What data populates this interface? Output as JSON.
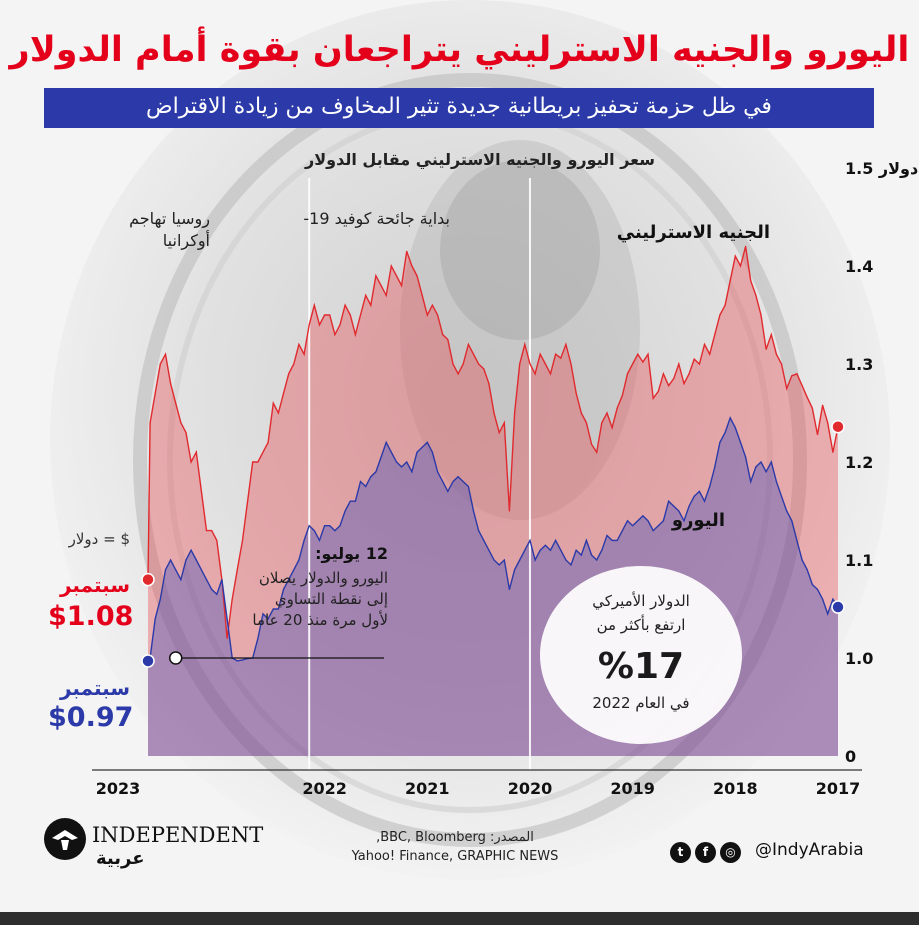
{
  "headline": "اليورو والجنيه الاسترليني يتراجعان بقوة أمام الدولار",
  "subtitle": "في ظل حزمة تحفيز بريطانية جديدة تثير المخاوف من زيادة الاقتراض",
  "chart_data": {
    "type": "area",
    "title": "سعر اليورو والجنيه الاسترليني مقابل الدولار",
    "y_tick_labels": [
      "0",
      "1.0",
      "1.1",
      "1.2",
      "1.3",
      "1.4",
      "1.5 دولار"
    ],
    "x_tick_labels": [
      "2017",
      "2018",
      "2019",
      "2020",
      "2021",
      "2022",
      "2023"
    ],
    "ylim": [
      0,
      1.5
    ],
    "x_axis_direction": "right-to-left",
    "series": [
      {
        "name": "الجنيه الاسترليني",
        "color": "#e02a2e",
        "x": [
          2017.0,
          2017.05,
          2017.1,
          2017.15,
          2017.2,
          2017.25,
          2017.3,
          2017.35,
          2017.4,
          2017.45,
          2017.5,
          2017.55,
          2017.6,
          2017.65,
          2017.7,
          2017.75,
          2017.8,
          2017.85,
          2017.9,
          2017.95,
          2018.0,
          2018.05,
          2018.1,
          2018.15,
          2018.2,
          2018.25,
          2018.3,
          2018.35,
          2018.4,
          2018.45,
          2018.5,
          2018.55,
          2018.6,
          2018.65,
          2018.7,
          2018.75,
          2018.8,
          2018.85,
          2018.9,
          2018.95,
          2019.0,
          2019.05,
          2019.1,
          2019.15,
          2019.2,
          2019.25,
          2019.3,
          2019.35,
          2019.4,
          2019.45,
          2019.5,
          2019.55,
          2019.6,
          2019.65,
          2019.7,
          2019.75,
          2019.8,
          2019.85,
          2019.9,
          2019.95,
          2020.0,
          2020.05,
          2020.1,
          2020.15,
          2020.2,
          2020.25,
          2020.3,
          2020.35,
          2020.4,
          2020.45,
          2020.5,
          2020.55,
          2020.6,
          2020.65,
          2020.7,
          2020.75,
          2020.8,
          2020.85,
          2020.9,
          2020.95,
          2021.0,
          2021.05,
          2021.1,
          2021.15,
          2021.2,
          2021.25,
          2021.3,
          2021.35,
          2021.4,
          2021.45,
          2021.5,
          2021.55,
          2021.6,
          2021.65,
          2021.7,
          2021.75,
          2021.8,
          2021.85,
          2021.9,
          2021.95,
          2022.0,
          2022.05,
          2022.1,
          2022.15,
          2022.2,
          2022.25,
          2022.3,
          2022.35,
          2022.4,
          2022.45,
          2022.5,
          2022.55,
          2022.6,
          2022.65,
          2022.7,
          2022.75,
          2022.8,
          2022.85,
          2022.9,
          2022.95,
          2023.0,
          2023.05,
          2023.1,
          2023.15,
          2023.2,
          2023.25,
          2023.3,
          2023.35,
          2023.4,
          2023.45,
          2023.5,
          2023.55,
          2023.6,
          2023.65,
          2023.7,
          2023.72
        ],
        "values": [
          1.236,
          1.21,
          1.24,
          1.258,
          1.228,
          1.255,
          1.266,
          1.278,
          1.29,
          1.288,
          1.275,
          1.3,
          1.31,
          1.33,
          1.315,
          1.35,
          1.37,
          1.385,
          1.42,
          1.4,
          1.41,
          1.385,
          1.36,
          1.35,
          1.33,
          1.31,
          1.32,
          1.3,
          1.305,
          1.29,
          1.28,
          1.3,
          1.285,
          1.278,
          1.29,
          1.272,
          1.265,
          1.31,
          1.302,
          1.31,
          1.3,
          1.29,
          1.268,
          1.255,
          1.235,
          1.25,
          1.24,
          1.21,
          1.218,
          1.24,
          1.25,
          1.27,
          1.3,
          1.32,
          1.306,
          1.31,
          1.29,
          1.3,
          1.31,
          1.29,
          1.3,
          1.32,
          1.3,
          1.25,
          1.15,
          1.24,
          1.23,
          1.25,
          1.28,
          1.295,
          1.3,
          1.31,
          1.32,
          1.3,
          1.29,
          1.3,
          1.325,
          1.33,
          1.35,
          1.36,
          1.35,
          1.37,
          1.39,
          1.4,
          1.415,
          1.38,
          1.39,
          1.4,
          1.37,
          1.38,
          1.39,
          1.36,
          1.37,
          1.35,
          1.33,
          1.35,
          1.36,
          1.34,
          1.33,
          1.35,
          1.35,
          1.34,
          1.36,
          1.34,
          1.31,
          1.32,
          1.3,
          1.29,
          1.27,
          1.25,
          1.26,
          1.22,
          1.21,
          1.2,
          1.2,
          1.16,
          1.12,
          1.09,
          1.06,
          1.02,
          1.08,
          1.12,
          1.13,
          1.13,
          1.17,
          1.21,
          1.2,
          1.23,
          1.24,
          1.26,
          1.28,
          1.31,
          1.3,
          1.27,
          1.24,
          1.08
        ]
      },
      {
        "name": "اليورو",
        "color": "#2b3aa8",
        "x": [
          2017.0,
          2017.05,
          2017.1,
          2017.15,
          2017.2,
          2017.25,
          2017.3,
          2017.35,
          2017.4,
          2017.45,
          2017.5,
          2017.55,
          2017.6,
          2017.65,
          2017.7,
          2017.75,
          2017.8,
          2017.85,
          2017.9,
          2017.95,
          2018.0,
          2018.05,
          2018.1,
          2018.15,
          2018.2,
          2018.25,
          2018.3,
          2018.35,
          2018.4,
          2018.45,
          2018.5,
          2018.55,
          2018.6,
          2018.65,
          2018.7,
          2018.75,
          2018.8,
          2018.85,
          2018.9,
          2018.95,
          2019.0,
          2019.05,
          2019.1,
          2019.15,
          2019.2,
          2019.25,
          2019.3,
          2019.35,
          2019.4,
          2019.45,
          2019.5,
          2019.55,
          2019.6,
          2019.65,
          2019.7,
          2019.75,
          2019.8,
          2019.85,
          2019.9,
          2019.95,
          2020.0,
          2020.05,
          2020.1,
          2020.15,
          2020.2,
          2020.25,
          2020.3,
          2020.35,
          2020.4,
          2020.45,
          2020.5,
          2020.55,
          2020.6,
          2020.65,
          2020.7,
          2020.75,
          2020.8,
          2020.85,
          2020.9,
          2020.95,
          2021.0,
          2021.05,
          2021.1,
          2021.15,
          2021.2,
          2021.25,
          2021.3,
          2021.35,
          2021.4,
          2021.45,
          2021.5,
          2021.55,
          2021.6,
          2021.65,
          2021.7,
          2021.75,
          2021.8,
          2021.85,
          2021.9,
          2021.95,
          2022.0,
          2022.05,
          2022.1,
          2022.15,
          2022.2,
          2022.25,
          2022.3,
          2022.35,
          2022.4,
          2022.45,
          2022.5,
          2022.55,
          2022.6,
          2022.65,
          2022.7,
          2022.75,
          2022.8,
          2022.85,
          2022.9,
          2022.95,
          2023.0,
          2023.05,
          2023.1,
          2023.15,
          2023.2,
          2023.25,
          2023.3,
          2023.35,
          2023.4,
          2023.45,
          2023.5,
          2023.55,
          2023.6,
          2023.65,
          2023.7,
          2023.72
        ],
        "values": [
          1.052,
          1.06,
          1.045,
          1.06,
          1.07,
          1.075,
          1.09,
          1.1,
          1.12,
          1.14,
          1.15,
          1.165,
          1.18,
          1.2,
          1.19,
          1.2,
          1.195,
          1.18,
          1.205,
          1.22,
          1.235,
          1.245,
          1.23,
          1.22,
          1.195,
          1.175,
          1.16,
          1.17,
          1.165,
          1.155,
          1.14,
          1.15,
          1.155,
          1.16,
          1.14,
          1.135,
          1.13,
          1.14,
          1.145,
          1.14,
          1.135,
          1.14,
          1.13,
          1.12,
          1.12,
          1.125,
          1.11,
          1.1,
          1.105,
          1.12,
          1.105,
          1.11,
          1.095,
          1.1,
          1.11,
          1.12,
          1.11,
          1.115,
          1.11,
          1.1,
          1.12,
          1.11,
          1.1,
          1.09,
          1.07,
          1.1,
          1.095,
          1.1,
          1.11,
          1.12,
          1.13,
          1.15,
          1.175,
          1.18,
          1.185,
          1.18,
          1.17,
          1.18,
          1.19,
          1.21,
          1.22,
          1.215,
          1.21,
          1.19,
          1.2,
          1.195,
          1.2,
          1.21,
          1.22,
          1.205,
          1.19,
          1.185,
          1.175,
          1.18,
          1.16,
          1.16,
          1.15,
          1.135,
          1.13,
          1.135,
          1.135,
          1.12,
          1.13,
          1.135,
          1.12,
          1.1,
          1.09,
          1.08,
          1.07,
          1.05,
          1.05,
          1.04,
          1.045,
          1.02,
          1.0,
          0.995,
          0.98,
          0.97,
          1.0,
          1.04,
          1.08,
          1.065,
          1.07,
          1.08,
          1.09,
          1.1,
          1.11,
          1.1,
          1.08,
          1.09,
          1.1,
          1.09,
          1.06,
          1.04,
          1.0,
          0.97
        ]
      }
    ],
    "markers": [
      {
        "x": 2017.25,
        "label": ""
      },
      {
        "x": 2017.0,
        "label": ""
      }
    ],
    "event_lines": [
      {
        "x": 2020.0,
        "label": "بداية جائحة كوفيد 19-"
      },
      {
        "x": 2022.15,
        "label": "روسيا تهاجم أوكرانيا"
      }
    ],
    "grid": false,
    "legend": "inline-labels"
  },
  "left_key": "$ = دولار",
  "gbp_label": {
    "month": "سبتمبر",
    "value": "$1.08",
    "color": "#e4001b"
  },
  "eur_label": {
    "month": "سبتمبر",
    "value": "$0.97",
    "color": "#2b3aa8"
  },
  "callout": {
    "date": "12 يوليو:",
    "line1": "اليورو والدولار يصلان",
    "line2": "إلى نقطة التساوي",
    "line3": "لأول مرة منذ 20 عاما"
  },
  "highlight": {
    "line1": "الدولار الأميركي",
    "line2": "ارتفع بأكثر من",
    "value": "%17",
    "line3": "في العام 2022"
  },
  "source": {
    "line1": "المصدر: BBC, Bloomberg,",
    "line2": "Yahoo! Finance, GRAPHIC NEWS"
  },
  "logo": {
    "name": "INDEPENDENT",
    "sub": "عربية"
  },
  "social": {
    "handle": "@IndyArabia",
    "icons": [
      "instagram-icon",
      "facebook-icon",
      "twitter-icon"
    ]
  }
}
